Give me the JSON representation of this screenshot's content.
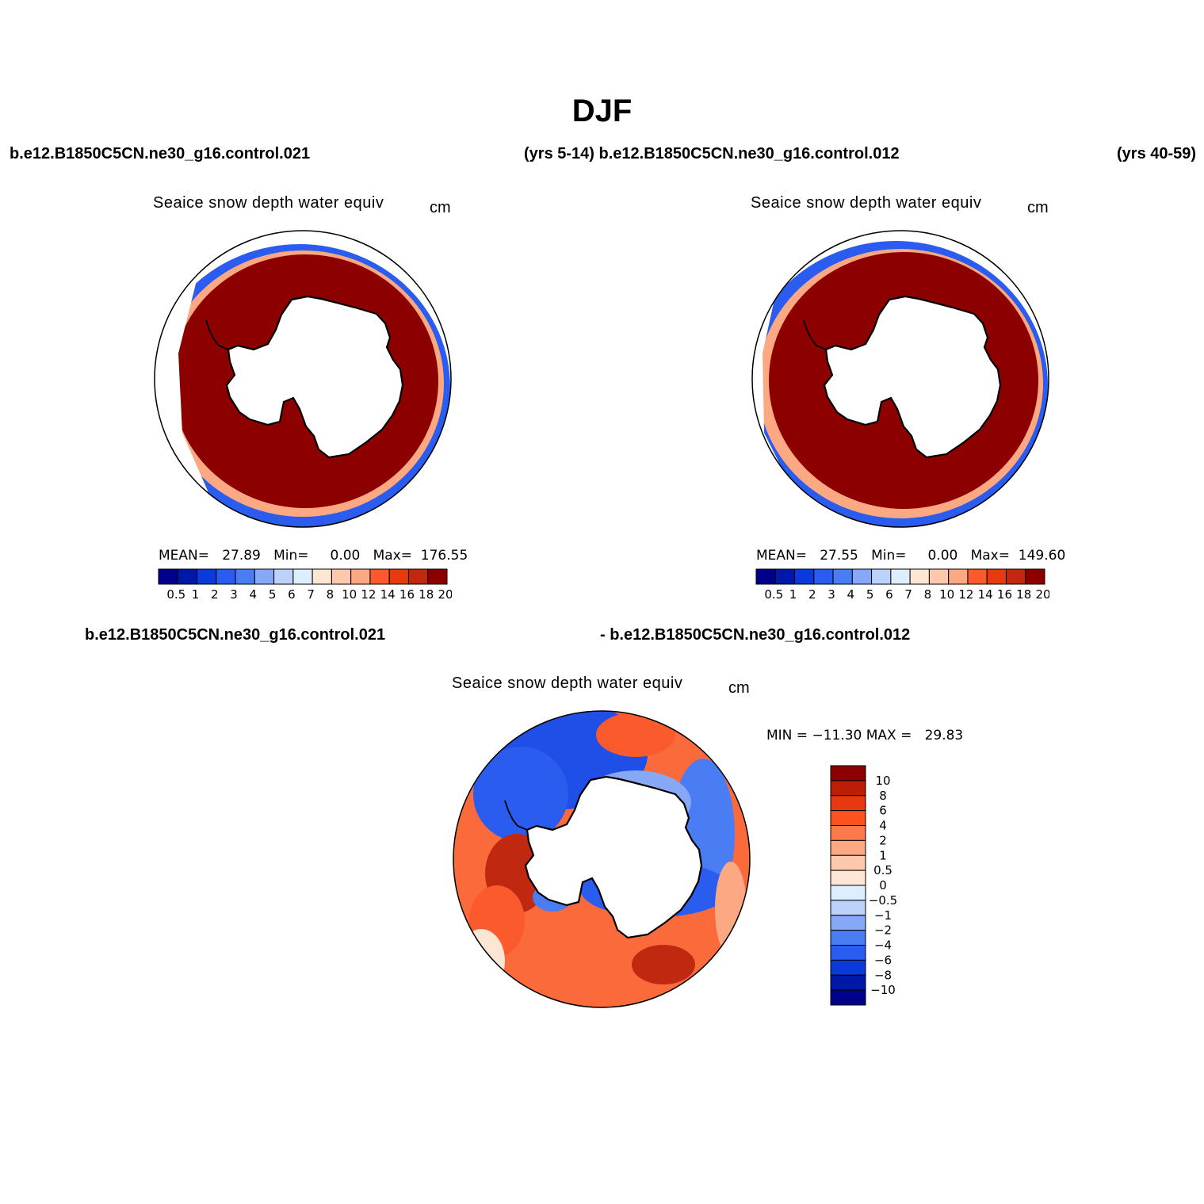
{
  "title": "DJF",
  "header": {
    "left": "b.e12.B1850C5CN.ne30_g16.control.021",
    "mid": "(yrs 5-14) b.e12.B1850C5CN.ne30_g16.control.012",
    "right": "(yrs 40-59)"
  },
  "diff_header": {
    "left": "b.e12.B1850C5CN.ne30_g16.control.021",
    "right": "- b.e12.B1850C5CN.ne30_g16.control.012"
  },
  "panels": [
    {
      "title": "Seaice snow depth water equiv",
      "unit": "cm",
      "stats": "MEAN=   27.89   Min=     0.00   Max=  176.55"
    },
    {
      "title": "Seaice snow depth water equiv",
      "unit": "cm",
      "stats": "MEAN=   27.55   Min=     0.00   Max=  149.60"
    }
  ],
  "diff_panel": {
    "title": "Seaice snow depth water equiv",
    "unit": "cm",
    "stats": "MIN = −11.30 MAX =   29.83"
  },
  "colorbar_abs": {
    "labels": [
      "0.5",
      "1",
      "2",
      "3",
      "4",
      "5",
      "6",
      "7",
      "8",
      "10",
      "12",
      "14",
      "16",
      "18",
      "20"
    ],
    "colors": [
      "#00008a",
      "#0018a8",
      "#0a3adc",
      "#2a5cf0",
      "#4a7cf4",
      "#86a8f6",
      "#bcd2fa",
      "#ddeeff",
      "#fde6d4",
      "#fdc8ac",
      "#fca882",
      "#fb5a2c",
      "#e83a10",
      "#c02810",
      "#8c0000"
    ]
  },
  "colorbar_diff": {
    "labels": [
      "10",
      "8",
      "6",
      "4",
      "2",
      "1",
      "0.5",
      "0",
      "−0.5",
      "−1",
      "−2",
      "−4",
      "−6",
      "−8",
      "−10"
    ],
    "colors": [
      "#8c0000",
      "#bc1e08",
      "#e83810",
      "#fb5220",
      "#fa7a4c",
      "#fca882",
      "#fdc8ac",
      "#fde6d4",
      "#ddeeff",
      "#bcd2fa",
      "#86a8f6",
      "#4a7cf4",
      "#2a5cf0",
      "#0a3adc",
      "#0018a8",
      "#00008a"
    ]
  },
  "colors": {
    "ice_red": "#8c0000",
    "ocean_blue": "#1f4fe6",
    "land": "#ffffff",
    "coast": "#000000"
  }
}
